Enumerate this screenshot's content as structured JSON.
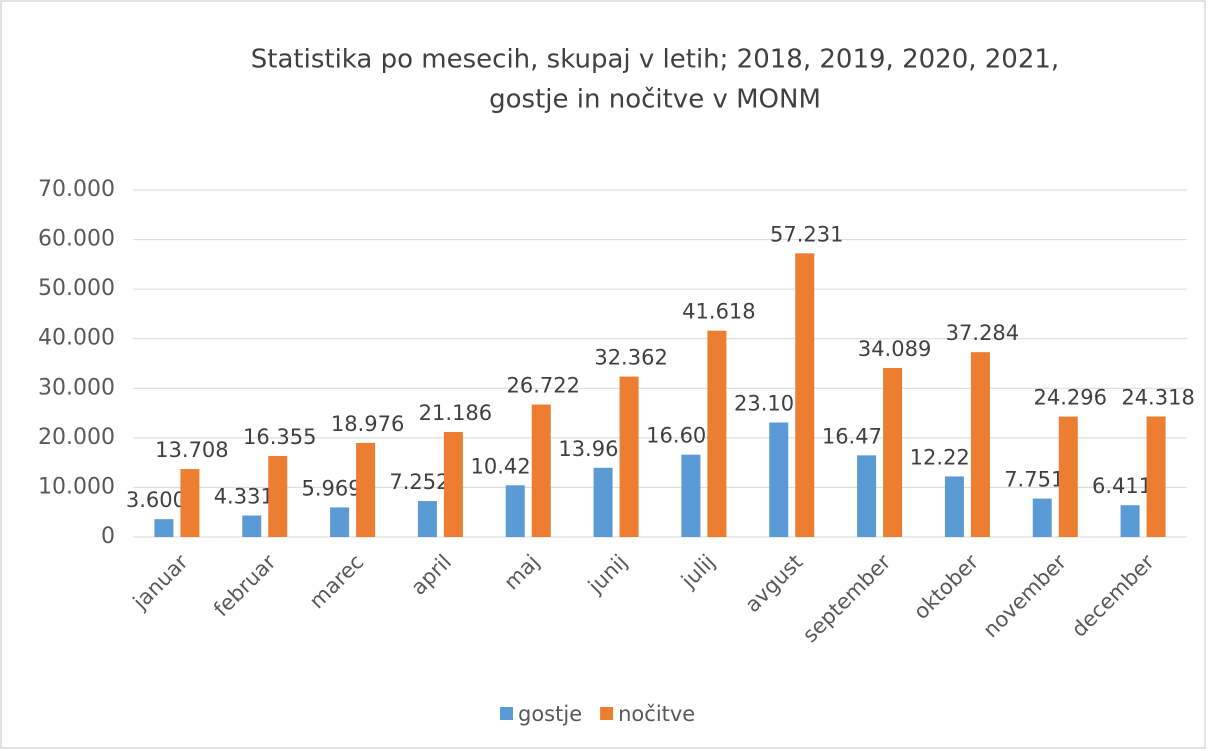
{
  "chart_data": {
    "type": "bar",
    "title": [
      "Statistika po mesecih, skupaj v letih; 2018, 2019, 2020, 2021,",
      "gostje in nočitve v MONM"
    ],
    "categories": [
      "januar",
      "februar",
      "marec",
      "april",
      "maj",
      "junij",
      "julij",
      "avgust",
      "september",
      "oktober",
      "november",
      "december"
    ],
    "series": [
      {
        "name": "gostje",
        "color": "#5b9bd5",
        "values": [
          3600,
          4331,
          5969,
          7252,
          10428,
          13962,
          16604,
          23102,
          16473,
          12222,
          7751,
          6411
        ],
        "value_labels": [
          "3.600",
          "4.331",
          "5.969",
          "7.252",
          "10.428",
          "13.962",
          "16.604",
          "23.102",
          "16.473",
          "12.222",
          "7.751",
          "6.411"
        ]
      },
      {
        "name": "nočitve",
        "color": "#ed7d31",
        "values": [
          13708,
          16355,
          18976,
          21186,
          26722,
          32362,
          41618,
          57231,
          34089,
          37284,
          24296,
          24318
        ],
        "value_labels": [
          "13.708",
          "16.355",
          "18.976",
          "21.186",
          "26.722",
          "32.362",
          "41.618",
          "57.231",
          "34.089",
          "37.284",
          "24.296",
          "24.318"
        ]
      }
    ],
    "ylim": [
      0,
      70000
    ],
    "yticks": [
      0,
      {
        "value": 10000,
        "label": "10.000"
      },
      {
        "value": 20000,
        "label": "20.000"
      },
      {
        "value": 30000,
        "label": "30.000"
      },
      {
        "value": 40000,
        "label": "40.000"
      },
      {
        "value": 50000,
        "label": "50.000"
      },
      {
        "value": 60000,
        "label": "60.000"
      },
      {
        "value": 70000,
        "label": "70.000"
      }
    ],
    "grid": true,
    "legend": "bottom"
  }
}
